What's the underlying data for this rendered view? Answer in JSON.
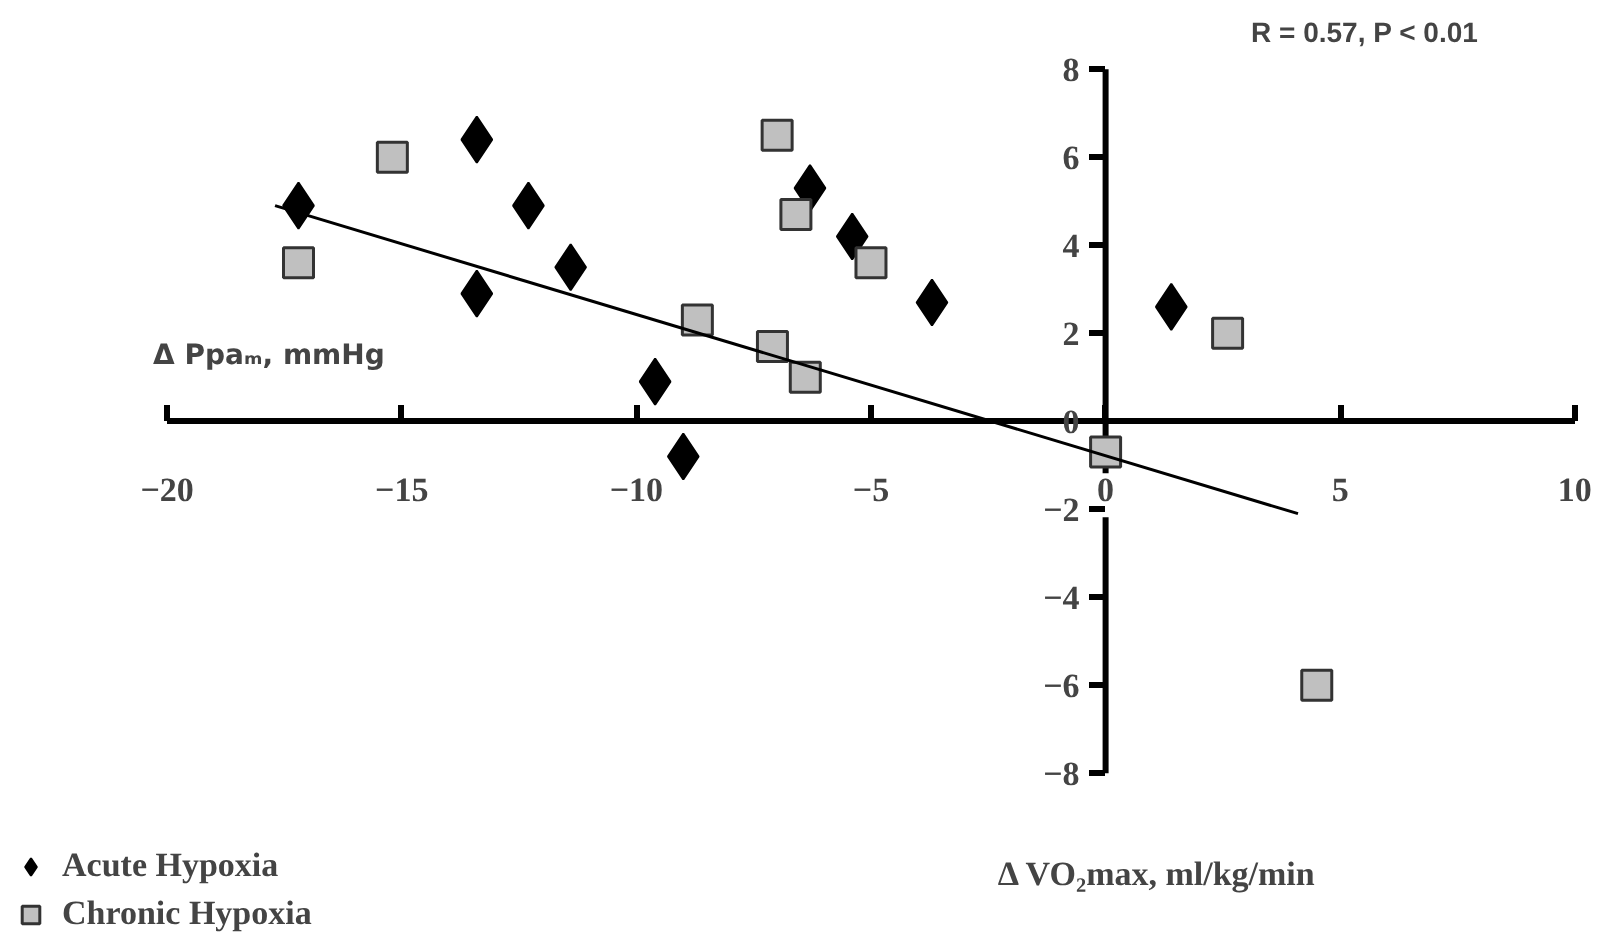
{
  "chart_data": {
    "type": "scatter",
    "xlabel": "Δ VO₂max, ml/kg/min",
    "ylabel": "Δ Ppaₘ, mmHg",
    "annotations": [
      "R = 0.57, P < 0.01"
    ],
    "xlim": [
      -20,
      10
    ],
    "xticks": [
      -20,
      -15,
      -10,
      -5,
      0,
      5,
      10
    ],
    "ylim": [
      -8,
      8
    ],
    "yticks": [
      -8,
      -6,
      -4,
      -2,
      0,
      2,
      4,
      6,
      8
    ],
    "grid": false,
    "legend": "bottom left",
    "series": [
      {
        "name": "Acute Hypoxia",
        "color": "#000000",
        "marker": "diamond",
        "x": [
          -17.2,
          -13.4,
          -12.3,
          -11.4,
          -13.4,
          -9.6,
          -9.0,
          -6.3,
          -5.4,
          -3.7,
          1.4
        ],
        "values": [
          4.9,
          6.4,
          4.9,
          3.5,
          2.9,
          0.9,
          -0.8,
          5.3,
          4.2,
          2.7,
          2.6
        ]
      },
      {
        "name": "Chronic Hypoxia",
        "color": "#c0c0c0",
        "marker": "square",
        "x": [
          -15.2,
          -17.2,
          -8.7,
          -7.1,
          -6.4,
          -7.0,
          -6.6,
          -5.0,
          2.6,
          0.0,
          4.5
        ],
        "values": [
          6.0,
          3.6,
          2.3,
          1.7,
          1.0,
          6.5,
          4.7,
          3.6,
          2.0,
          -0.7,
          -6.0
        ]
      },
      {
        "type": "line",
        "color": "#000000",
        "marker": "none",
        "x": [
          -17.7,
          4.1
        ],
        "values": [
          4.9,
          -2.1
        ]
      }
    ]
  }
}
